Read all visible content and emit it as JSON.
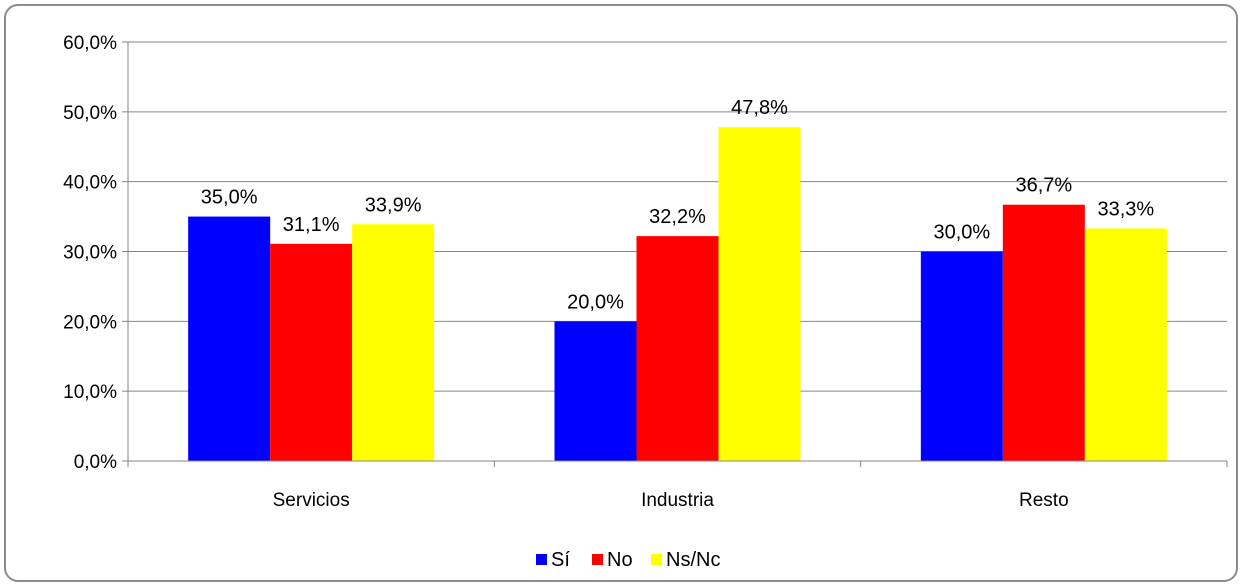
{
  "chart_data": {
    "type": "bar",
    "categories": [
      "Servicios",
      "Industria",
      "Resto"
    ],
    "series": [
      {
        "name": "Sí",
        "color": "#0000FF",
        "values": [
          35.0,
          20.0,
          30.0
        ],
        "labels": [
          "35,0%",
          "20,0%",
          "30,0%"
        ]
      },
      {
        "name": "No",
        "color": "#FF0000",
        "values": [
          31.1,
          32.2,
          36.7
        ],
        "labels": [
          "31,1%",
          "32,2%",
          "36,7%"
        ]
      },
      {
        "name": "Ns/Nc",
        "color": "#FFFF00",
        "values": [
          33.9,
          47.8,
          33.3
        ],
        "labels": [
          "33,9%",
          "47,8%",
          "33,3%"
        ]
      }
    ],
    "y_ticks": [
      "0,0%",
      "10,0%",
      "20,0%",
      "30,0%",
      "40,0%",
      "50,0%",
      "60,0%"
    ],
    "ylim": [
      0,
      60
    ],
    "grid": true,
    "legend_position": "bottom",
    "title": "",
    "xlabel": "",
    "ylabel": ""
  }
}
